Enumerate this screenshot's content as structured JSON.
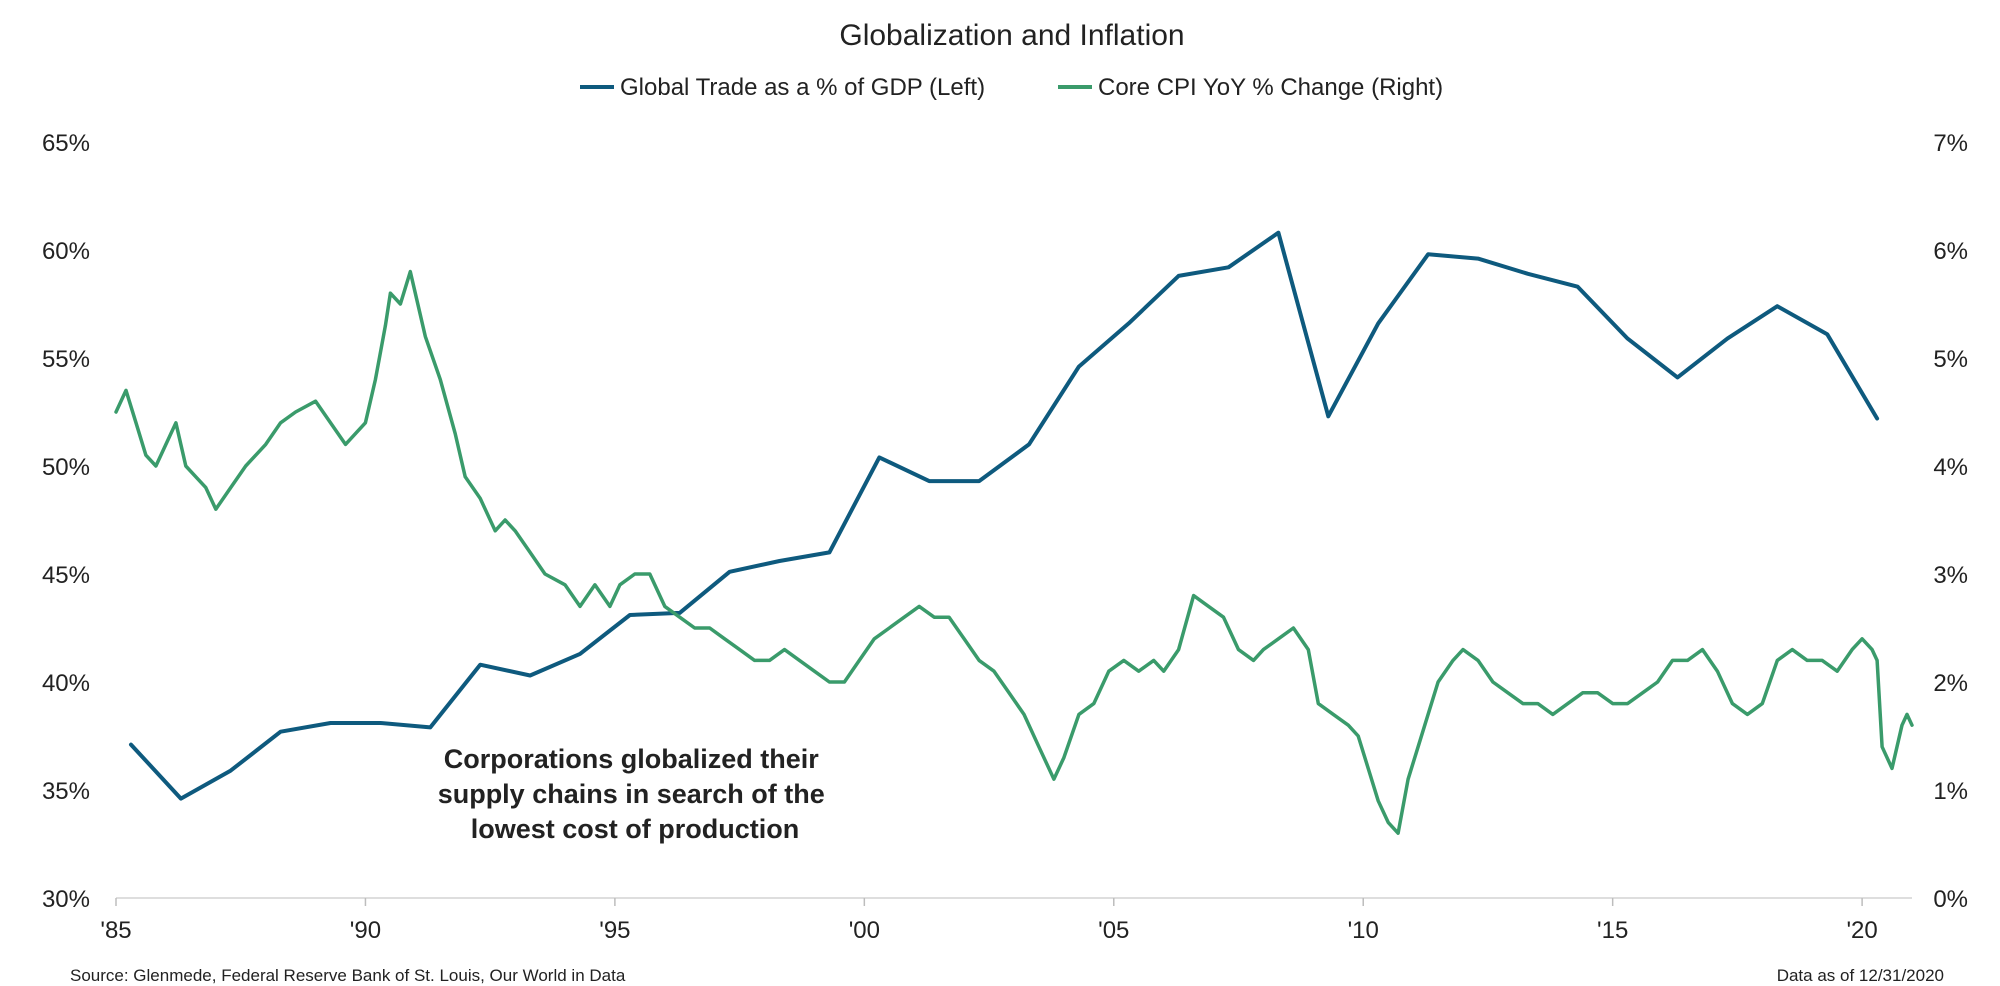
{
  "chart_data": {
    "type": "line",
    "title": "Globalization and Inflation",
    "x_tick_labels": [
      "'85",
      "'90",
      "'95",
      "'00",
      "'05",
      "'10",
      "'15",
      "'20"
    ],
    "x_tick_years": [
      1985,
      1990,
      1995,
      2000,
      2005,
      2010,
      2015,
      2020
    ],
    "xlim": [
      1985,
      2021
    ],
    "left_axis": {
      "ylim": [
        30,
        65
      ],
      "ticks": [
        30,
        35,
        40,
        45,
        50,
        55,
        60,
        65
      ],
      "tick_labels": [
        "30%",
        "35%",
        "40%",
        "45%",
        "50%",
        "55%",
        "60%",
        "65%"
      ]
    },
    "right_axis": {
      "ylim": [
        0,
        7
      ],
      "ticks": [
        0,
        1,
        2,
        3,
        4,
        5,
        6,
        7
      ],
      "tick_labels": [
        "0%",
        "1%",
        "2%",
        "3%",
        "4%",
        "5%",
        "6%",
        "7%"
      ]
    },
    "grid": false,
    "legend_position": "top-center",
    "annotation": [
      "Corporations globalized their",
      "supply chains in search of the",
      "lowest cost of production"
    ],
    "series": [
      {
        "name": "Global Trade as a % of GDP (Left)",
        "axis": "left",
        "color": "#0e5a7e",
        "x": [
          1985.3,
          1986.3,
          1987.3,
          1988.3,
          1989.3,
          1990.3,
          1991.3,
          1992.3,
          1993.3,
          1994.3,
          1995.3,
          1996.3,
          1997.3,
          1998.3,
          1999.3,
          2000.3,
          2001.3,
          2002.3,
          2003.3,
          2004.3,
          2005.3,
          2006.3,
          2007.3,
          2008.3,
          2009.3,
          2010.3,
          2011.3,
          2012.3,
          2013.3,
          2014.3,
          2015.3,
          2016.3,
          2017.3,
          2018.3,
          2019.3,
          2020.3
        ],
        "values": [
          37.1,
          34.6,
          35.9,
          37.7,
          38.1,
          38.1,
          37.9,
          40.8,
          40.3,
          41.3,
          43.1,
          43.2,
          45.1,
          45.6,
          46.0,
          50.4,
          49.3,
          49.3,
          51.0,
          54.6,
          56.6,
          58.8,
          59.2,
          60.8,
          52.3,
          56.6,
          59.8,
          59.6,
          58.9,
          58.3,
          55.9,
          54.1,
          55.9,
          57.4,
          56.1,
          52.2
        ]
      },
      {
        "name": "Core CPI YoY % Change (Right)",
        "axis": "right",
        "color": "#3a9b6b",
        "x": [
          1985.0,
          1985.2,
          1985.4,
          1985.6,
          1985.8,
          1986.0,
          1986.2,
          1986.4,
          1986.6,
          1986.8,
          1987.0,
          1987.3,
          1987.6,
          1988.0,
          1988.3,
          1988.6,
          1989.0,
          1989.3,
          1989.6,
          1989.8,
          1990.0,
          1990.2,
          1990.4,
          1990.5,
          1990.7,
          1990.9,
          1991.0,
          1991.2,
          1991.5,
          1991.8,
          1992.0,
          1992.3,
          1992.6,
          1992.8,
          1993.0,
          1993.3,
          1993.6,
          1994.0,
          1994.3,
          1994.6,
          1994.9,
          1995.1,
          1995.4,
          1995.7,
          1996.0,
          1996.3,
          1996.6,
          1996.9,
          1997.2,
          1997.5,
          1997.8,
          1998.1,
          1998.4,
          1998.7,
          1999.0,
          1999.3,
          1999.6,
          1999.9,
          2000.2,
          2000.5,
          2000.8,
          2001.1,
          2001.4,
          2001.7,
          2002.0,
          2002.3,
          2002.6,
          2002.9,
          2003.2,
          2003.5,
          2003.8,
          2004.0,
          2004.3,
          2004.6,
          2004.9,
          2005.2,
          2005.5,
          2005.8,
          2006.0,
          2006.3,
          2006.6,
          2006.9,
          2007.2,
          2007.5,
          2007.8,
          2008.0,
          2008.3,
          2008.6,
          2008.9,
          2009.1,
          2009.4,
          2009.7,
          2009.9,
          2010.1,
          2010.3,
          2010.5,
          2010.7,
          2010.9,
          2011.1,
          2011.3,
          2011.5,
          2011.8,
          2012.0,
          2012.3,
          2012.6,
          2012.9,
          2013.2,
          2013.5,
          2013.8,
          2014.1,
          2014.4,
          2014.7,
          2015.0,
          2015.3,
          2015.6,
          2015.9,
          2016.2,
          2016.5,
          2016.8,
          2017.1,
          2017.4,
          2017.7,
          2018.0,
          2018.3,
          2018.6,
          2018.9,
          2019.2,
          2019.5,
          2019.8,
          2020.0,
          2020.2,
          2020.3,
          2020.4,
          2020.6,
          2020.8,
          2020.9,
          2021.0
        ],
        "values": [
          4.5,
          4.7,
          4.4,
          4.1,
          4.0,
          4.2,
          4.4,
          4.0,
          3.9,
          3.8,
          3.6,
          3.8,
          4.0,
          4.2,
          4.4,
          4.5,
          4.6,
          4.4,
          4.2,
          4.3,
          4.4,
          4.8,
          5.3,
          5.6,
          5.5,
          5.8,
          5.6,
          5.2,
          4.8,
          4.3,
          3.9,
          3.7,
          3.4,
          3.5,
          3.4,
          3.2,
          3.0,
          2.9,
          2.7,
          2.9,
          2.7,
          2.9,
          3.0,
          3.0,
          2.7,
          2.6,
          2.5,
          2.5,
          2.4,
          2.3,
          2.2,
          2.2,
          2.3,
          2.2,
          2.1,
          2.0,
          2.0,
          2.2,
          2.4,
          2.5,
          2.6,
          2.7,
          2.6,
          2.6,
          2.4,
          2.2,
          2.1,
          1.9,
          1.7,
          1.4,
          1.1,
          1.3,
          1.7,
          1.8,
          2.1,
          2.2,
          2.1,
          2.2,
          2.1,
          2.3,
          2.8,
          2.7,
          2.6,
          2.3,
          2.2,
          2.3,
          2.4,
          2.5,
          2.3,
          1.8,
          1.7,
          1.6,
          1.5,
          1.2,
          0.9,
          0.7,
          0.6,
          1.1,
          1.4,
          1.7,
          2.0,
          2.2,
          2.3,
          2.2,
          2.0,
          1.9,
          1.8,
          1.8,
          1.7,
          1.8,
          1.9,
          1.9,
          1.8,
          1.8,
          1.9,
          2.0,
          2.2,
          2.2,
          2.3,
          2.1,
          1.8,
          1.7,
          1.8,
          2.2,
          2.3,
          2.2,
          2.2,
          2.1,
          2.3,
          2.4,
          2.3,
          2.2,
          1.4,
          1.2,
          1.6,
          1.7,
          1.6
        ]
      }
    ]
  },
  "footer": {
    "source": "Source: Glenmede, Federal Reserve Bank of St. Louis, Our World in Data",
    "as_of": "Data as of 12/31/2020"
  }
}
